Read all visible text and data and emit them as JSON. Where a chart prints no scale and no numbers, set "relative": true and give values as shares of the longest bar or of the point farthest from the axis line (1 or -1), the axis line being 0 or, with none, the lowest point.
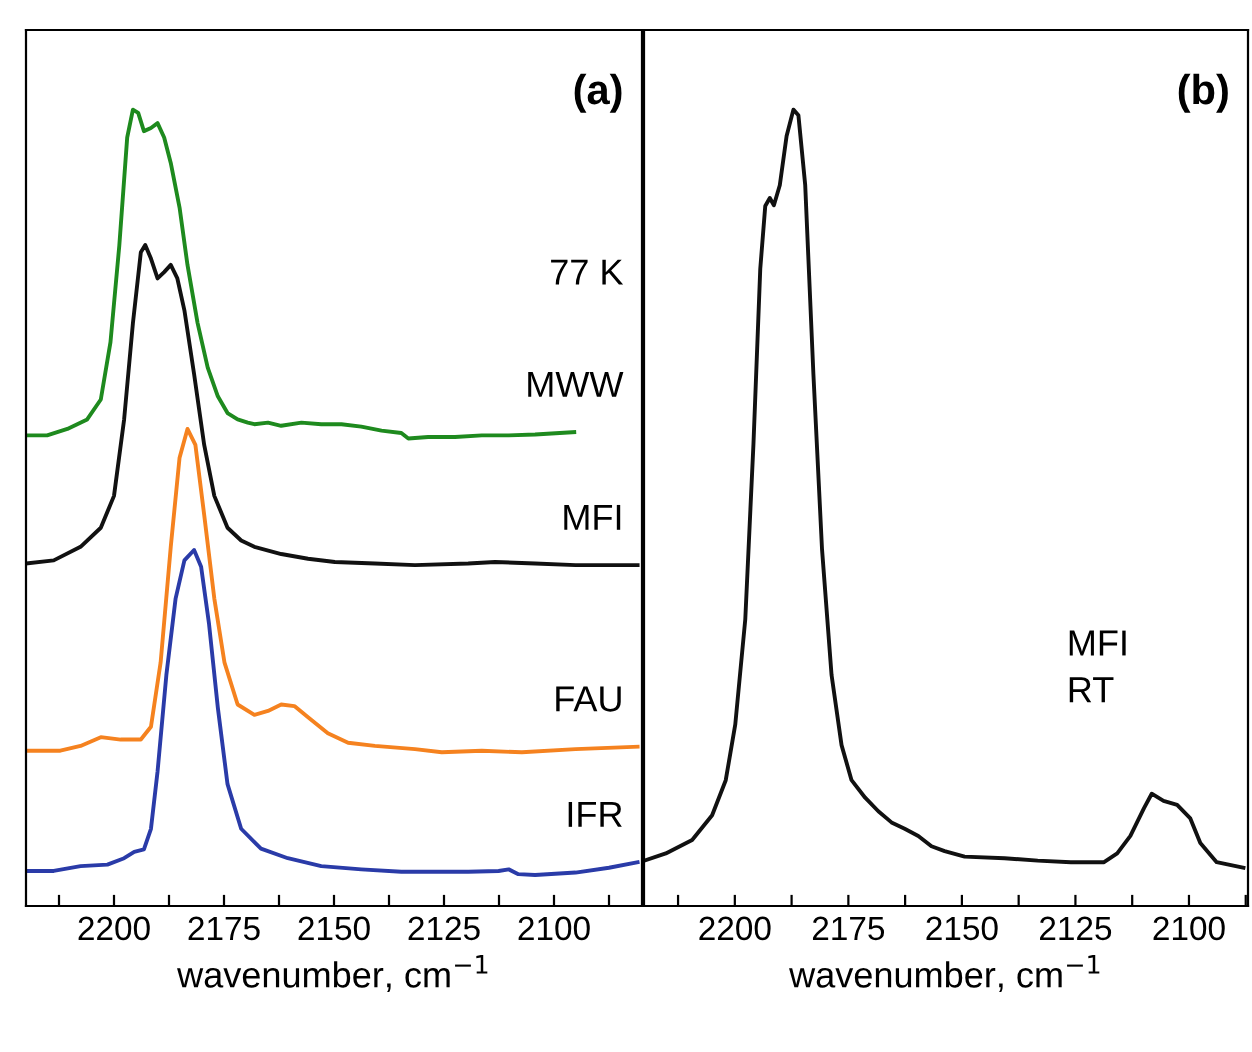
{
  "chart_data": [
    {
      "type": "line",
      "title": "(a)",
      "xlabel": "wavenumber, cm$^{−1}$",
      "relative": true,
      "xlim": [
        2220,
        2080
      ],
      "xticks": [
        {
          "value": 2212.5,
          "label": null
        },
        2200,
        {
          "value": 2187.5,
          "label": null
        },
        2175,
        {
          "value": 2162.5,
          "label": null
        },
        2150,
        {
          "value": 2137.5,
          "label": null
        },
        2125,
        {
          "value": 2112.5,
          "label": null
        },
        2100,
        {
          "value": 2087.5,
          "label": null
        }
      ],
      "annotations": [
        "77 K"
      ],
      "legend": false,
      "grid": false,
      "marker": "none",
      "line_style": "solid",
      "series": [
        {
          "name": "MWW",
          "color": "#1e8a1e",
          "x": [
            2220,
            2215.2,
            2210.6,
            2206.1,
            2203.0,
            2200.8,
            2198.8,
            2197.0,
            2195.7,
            2194.5,
            2193.2,
            2191.6,
            2190.1,
            2188.6,
            2187.1,
            2185.1,
            2183.3,
            2181.0,
            2178.7,
            2176.4,
            2174.2,
            2171.9,
            2169.6,
            2168.1,
            2165.0,
            2162.0,
            2157.4,
            2152.9,
            2148.3,
            2143.8,
            2139.2,
            2134.7,
            2133.1,
            2128.6,
            2122.5,
            2116.4,
            2110.3,
            2104.3,
            2095.4
          ],
          "values": [
            0.591,
            0.591,
            0.599,
            0.611,
            0.636,
            0.708,
            0.829,
            0.965,
            1.0,
            0.996,
            0.973,
            0.977,
            0.983,
            0.965,
            0.933,
            0.877,
            0.805,
            0.732,
            0.676,
            0.64,
            0.619,
            0.611,
            0.607,
            0.605,
            0.607,
            0.603,
            0.607,
            0.605,
            0.605,
            0.602,
            0.597,
            0.594,
            0.587,
            0.589,
            0.589,
            0.591,
            0.591,
            0.592,
            0.595
          ]
        },
        {
          "name": "MFI",
          "color": "#111111",
          "x": [
            2220,
            2213.7,
            2207.6,
            2203.0,
            2200.0,
            2197.7,
            2195.7,
            2193.9,
            2192.9,
            2191.6,
            2190.1,
            2188.6,
            2187.1,
            2185.6,
            2184.0,
            2181.8,
            2179.5,
            2177.2,
            2174.2,
            2171.1,
            2168.1,
            2162.0,
            2155.9,
            2149.8,
            2140.7,
            2131.6,
            2119.5,
            2113.4,
            2104.3,
            2095.1,
            2081
          ],
          "values": [
            0.43,
            0.434,
            0.451,
            0.475,
            0.515,
            0.611,
            0.732,
            0.821,
            0.83,
            0.813,
            0.788,
            0.796,
            0.805,
            0.788,
            0.748,
            0.668,
            0.579,
            0.515,
            0.475,
            0.459,
            0.451,
            0.442,
            0.436,
            0.432,
            0.43,
            0.428,
            0.43,
            0.432,
            0.43,
            0.428,
            0.428
          ]
        },
        {
          "name": "FAU",
          "color": "#f5821f",
          "x": [
            2220,
            2212.2,
            2207.6,
            2203.0,
            2198.5,
            2193.9,
            2191.6,
            2189.4,
            2187.1,
            2185.1,
            2183.3,
            2181.5,
            2179.5,
            2177.2,
            2174.9,
            2171.9,
            2168.1,
            2165.0,
            2162.0,
            2159.0,
            2155.9,
            2151.4,
            2146.8,
            2140.7,
            2131.6,
            2125.5,
            2116.4,
            2107.3,
            2095.1,
            2081
          ],
          "values": [
            0.195,
            0.195,
            0.201,
            0.212,
            0.209,
            0.209,
            0.225,
            0.306,
            0.451,
            0.563,
            0.599,
            0.579,
            0.491,
            0.386,
            0.306,
            0.253,
            0.24,
            0.245,
            0.253,
            0.251,
            0.237,
            0.217,
            0.205,
            0.201,
            0.197,
            0.193,
            0.195,
            0.193,
            0.197,
            0.2
          ]
        },
        {
          "name": "IFR",
          "color": "#2a3ba8",
          "x": [
            2220,
            2213.7,
            2207.6,
            2201.5,
            2197.7,
            2195.4,
            2193.2,
            2191.6,
            2190.1,
            2188.1,
            2186.0,
            2184.0,
            2181.8,
            2180.2,
            2178.4,
            2176.4,
            2174.2,
            2171.1,
            2166.6,
            2160.5,
            2152.9,
            2143.8,
            2134.7,
            2119.5,
            2112.6,
            2110.3,
            2108.1,
            2104.3,
            2095.1,
            2087.5,
            2081
          ],
          "values": [
            0.044,
            0.044,
            0.05,
            0.052,
            0.06,
            0.068,
            0.071,
            0.097,
            0.169,
            0.29,
            0.386,
            0.434,
            0.447,
            0.426,
            0.354,
            0.249,
            0.153,
            0.097,
            0.072,
            0.06,
            0.05,
            0.046,
            0.043,
            0.043,
            0.044,
            0.046,
            0.04,
            0.039,
            0.042,
            0.048,
            0.055
          ]
        }
      ]
    },
    {
      "type": "line",
      "title": "(b)",
      "xlabel": "wavenumber, cm$^{−1}$",
      "relative": true,
      "xlim": [
        2220,
        2087
      ],
      "xticks": [
        {
          "value": 2212.5,
          "label": null
        },
        2200,
        {
          "value": 2187.5,
          "label": null
        },
        2175,
        {
          "value": 2162.5,
          "label": null
        },
        2150,
        {
          "value": 2137.5,
          "label": null
        },
        2125,
        {
          "value": 2112.5,
          "label": null
        },
        2100,
        {
          "value": 2087.5,
          "label": null
        }
      ],
      "annotations": [
        "MFI\nRT"
      ],
      "legend": false,
      "grid": false,
      "marker": "none",
      "line_style": "solid",
      "series": [
        {
          "color": "#111111",
          "x": [
            2219.9,
            2215.2,
            2209.4,
            2205.0,
            2202.0,
            2199.9,
            2197.7,
            2195.9,
            2194.4,
            2193.3,
            2192.3,
            2191.4,
            2190.1,
            2188.6,
            2187.1,
            2186.0,
            2184.5,
            2182.7,
            2180.8,
            2178.7,
            2176.5,
            2174.3,
            2171.3,
            2168.4,
            2165.5,
            2162.6,
            2159.6,
            2156.7,
            2153.8,
            2149.4,
            2140.6,
            2133.3,
            2126.0,
            2118.7,
            2115.8,
            2112.9,
            2109.9,
            2108.2,
            2105.6,
            2102.6,
            2099.7,
            2097.5,
            2093.9,
            2088
          ],
          "values": [
            0.057,
            0.066,
            0.083,
            0.114,
            0.158,
            0.228,
            0.36,
            0.58,
            0.8,
            0.879,
            0.889,
            0.88,
            0.905,
            0.967,
            1.0,
            0.993,
            0.905,
            0.668,
            0.448,
            0.29,
            0.202,
            0.158,
            0.136,
            0.119,
            0.105,
            0.097,
            0.088,
            0.075,
            0.069,
            0.062,
            0.06,
            0.057,
            0.055,
            0.055,
            0.066,
            0.088,
            0.123,
            0.141,
            0.132,
            0.127,
            0.11,
            0.079,
            0.055,
            0.048
          ]
        }
      ]
    }
  ]
}
